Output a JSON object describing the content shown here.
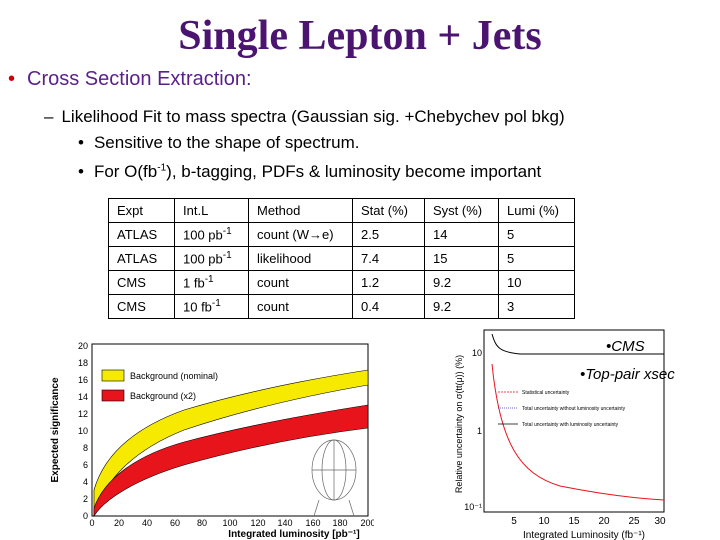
{
  "title": "Single Lepton + Jets",
  "bullet1": "Cross Section Extraction:",
  "bullet2": "Likelihood Fit to mass spectra (Gaussian sig. +Chebychev pol bkg)",
  "bullet3": "Sensitive to the shape of spectrum.",
  "bullet4": {
    "pre": "For O(fb",
    "sup": "-1",
    "post": "), b-tagging, PDFs & luminosity become important"
  },
  "table": {
    "headers": [
      "Expt",
      "Int.L",
      "Method",
      "Stat (%)",
      "Syst (%)",
      "Lumi (%)"
    ],
    "rows": [
      {
        "expt": "ATLAS",
        "intl": "100 pb",
        "intl_sup": "-1",
        "method": "count (W→e)",
        "stat": "2.5",
        "syst": "14",
        "lumi": "5"
      },
      {
        "expt": "ATLAS",
        "intl": "100 pb",
        "intl_sup": "-1",
        "method": "likelihood",
        "stat": "7.4",
        "syst": "15",
        "lumi": "5"
      },
      {
        "expt": "CMS",
        "intl": "1 fb",
        "intl_sup": "-1",
        "method": "count",
        "stat": "1.2",
        "syst": "9.2",
        "lumi": "10"
      },
      {
        "expt": "CMS",
        "intl": "10 fb",
        "intl_sup": "-1",
        "method": "count",
        "stat": "0.4",
        "syst": "9.2",
        "lumi": "3"
      }
    ]
  },
  "label_cms": "•CMS",
  "label_top": "•Top-pair xsec",
  "plot_left": {
    "ylabel": "Expected significance",
    "xlabel": "Integrated luminosity [pb⁻¹]",
    "yticks": [
      "0",
      "2",
      "4",
      "6",
      "8",
      "10",
      "12",
      "14",
      "16",
      "18",
      "20"
    ],
    "xticks": [
      "0",
      "20",
      "40",
      "60",
      "80",
      "100",
      "120",
      "140",
      "160",
      "180",
      "200"
    ],
    "legend": [
      "Background (nominal)",
      "Background (x2)"
    ],
    "colors": {
      "nominal": "#f5ea00",
      "x2": "#e8141c"
    }
  },
  "plot_right": {
    "ylabel": "Relative uncertainty on σ(tt(μ)) (%)",
    "xlabel": "Integrated Luminosity (fb⁻¹)",
    "yticks": [
      "10",
      "1",
      "10⁻¹"
    ],
    "xticks": [
      "5",
      "10",
      "15",
      "20",
      "25",
      "30"
    ],
    "legend": [
      "Statistical uncertainty",
      "Total uncertainty without luminosity uncertainty",
      "Total uncertainty with luminosity uncertainty"
    ]
  }
}
